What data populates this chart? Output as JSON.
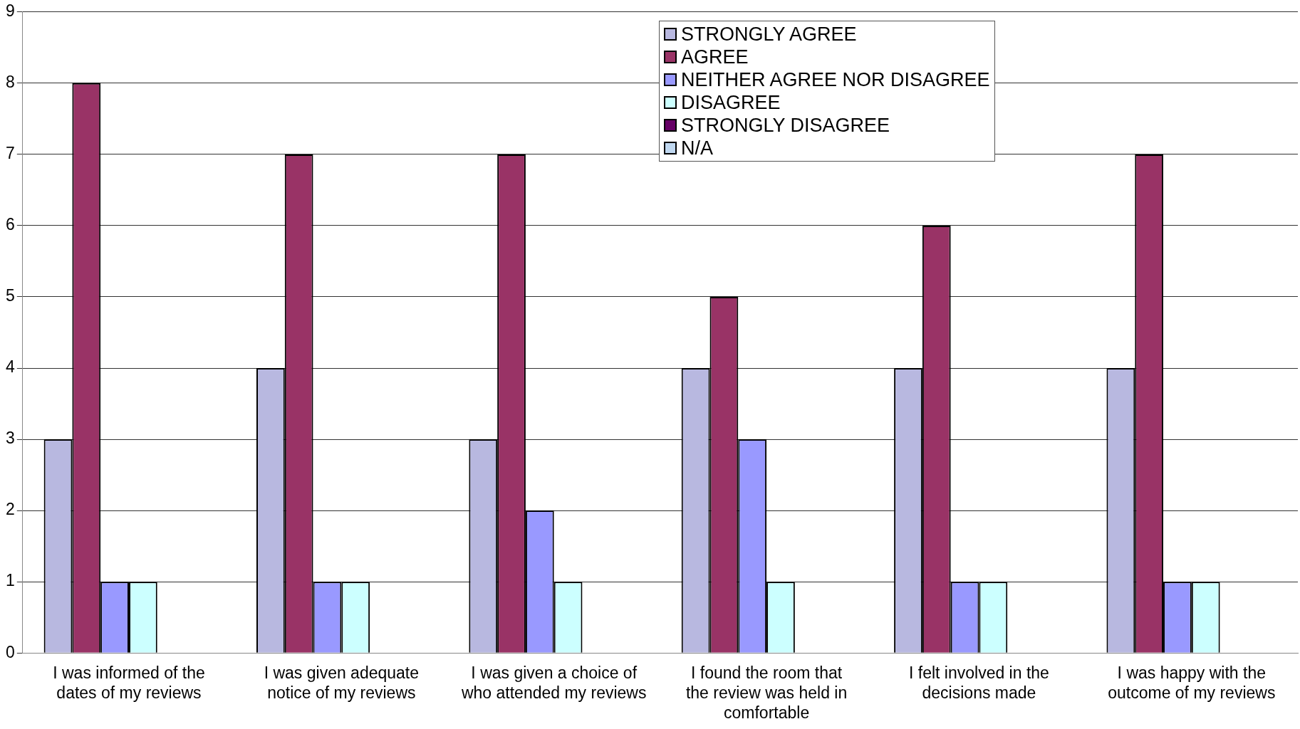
{
  "chart_data": {
    "type": "bar",
    "categories": [
      "I was informed of the dates of my reviews",
      "I was given adequate notice of my reviews",
      "I was given a choice of who attended my reviews",
      "I found the room that the review was held in comfortable",
      "I felt involved in the decisions made",
      "I was happy with the outcome of my reviews"
    ],
    "series": [
      {
        "name": "STRONGLY AGREE",
        "color": "#b8b8e0",
        "values": [
          3,
          4,
          3,
          4,
          4,
          4
        ]
      },
      {
        "name": "AGREE",
        "color": "#993366",
        "values": [
          8,
          7,
          7,
          5,
          6,
          7
        ]
      },
      {
        "name": "NEITHER AGREE NOR DISAGREE",
        "color": "#9999ff",
        "values": [
          1,
          1,
          2,
          3,
          1,
          1
        ]
      },
      {
        "name": "DISAGREE",
        "color": "#ccffff",
        "values": [
          1,
          1,
          1,
          1,
          1,
          1
        ]
      },
      {
        "name": "STRONGLY DISAGREE",
        "color": "#660066",
        "values": [
          0,
          0,
          0,
          0,
          0,
          0
        ]
      },
      {
        "name": "N/A",
        "color": "#c0d8f0",
        "values": [
          0,
          0,
          0,
          0,
          0,
          0
        ]
      }
    ],
    "ylim": [
      0,
      9
    ],
    "yticks": [
      0,
      1,
      2,
      3,
      4,
      5,
      6,
      7,
      8,
      9
    ],
    "grid": "y",
    "legend": "top"
  }
}
